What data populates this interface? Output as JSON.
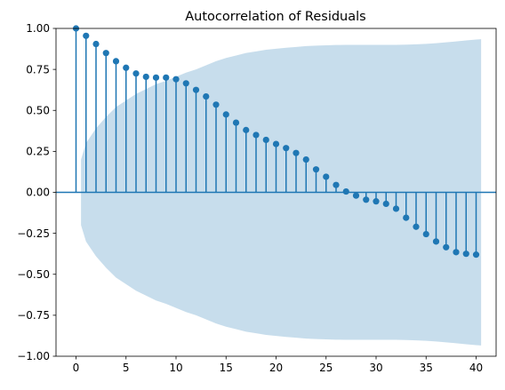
{
  "colors": {
    "stem": "#1f77b4",
    "marker": "#1f77b4",
    "band": "#1f77b4",
    "zero_line": "#1f77b4",
    "axis": "#000000",
    "background": "#ffffff"
  },
  "chart_data": {
    "type": "scatter",
    "subtype": "stem",
    "title": "Autocorrelation of Residuals",
    "xlabel": "",
    "ylabel": "",
    "xlim": [
      -2,
      42
    ],
    "ylim": [
      -1.0,
      1.0
    ],
    "grid": false,
    "legend": "none",
    "x_ticks": [
      0,
      5,
      10,
      15,
      20,
      25,
      30,
      35,
      40
    ],
    "x_tick_labels": [
      "0",
      "5",
      "10",
      "15",
      "20",
      "25",
      "30",
      "35",
      "40"
    ],
    "y_ticks": [
      -1.0,
      -0.75,
      -0.5,
      -0.25,
      0.0,
      0.25,
      0.5,
      0.75,
      1.0
    ],
    "y_tick_labels": [
      "−1.00",
      "−0.75",
      "−0.50",
      "−0.25",
      "0.00",
      "0.25",
      "0.50",
      "0.75",
      "1.00"
    ],
    "lags": [
      0,
      1,
      2,
      3,
      4,
      5,
      6,
      7,
      8,
      9,
      10,
      11,
      12,
      13,
      14,
      15,
      16,
      17,
      18,
      19,
      20,
      21,
      22,
      23,
      24,
      25,
      26,
      27,
      28,
      29,
      30,
      31,
      32,
      33,
      34,
      35,
      36,
      37,
      38,
      39,
      40
    ],
    "acf": [
      1.0,
      0.955,
      0.905,
      0.85,
      0.8,
      0.76,
      0.725,
      0.705,
      0.7,
      0.7,
      0.69,
      0.665,
      0.625,
      0.585,
      0.535,
      0.475,
      0.425,
      0.38,
      0.35,
      0.32,
      0.295,
      0.27,
      0.24,
      0.2,
      0.14,
      0.095,
      0.045,
      0.005,
      -0.02,
      -0.045,
      -0.055,
      -0.07,
      -0.1,
      -0.155,
      -0.21,
      -0.255,
      -0.3,
      -0.335,
      -0.365,
      -0.375,
      -0.38
    ],
    "confidence_band": {
      "lags": [
        0.5,
        1,
        2,
        3,
        4,
        5,
        6,
        7,
        8,
        9,
        10,
        11,
        12,
        13,
        14,
        15,
        16,
        17,
        18,
        19,
        20,
        21,
        22,
        23,
        24,
        25,
        26,
        27,
        28,
        29,
        30,
        31,
        32,
        33,
        34,
        35,
        36,
        37,
        38,
        39,
        40,
        40.5
      ],
      "upper": [
        0.2,
        0.3,
        0.39,
        0.46,
        0.52,
        0.56,
        0.6,
        0.63,
        0.66,
        0.68,
        0.705,
        0.73,
        0.75,
        0.775,
        0.8,
        0.82,
        0.835,
        0.85,
        0.86,
        0.87,
        0.876,
        0.882,
        0.887,
        0.892,
        0.895,
        0.897,
        0.899,
        0.9,
        0.9,
        0.9,
        0.9,
        0.9,
        0.9,
        0.901,
        0.903,
        0.906,
        0.91,
        0.915,
        0.921,
        0.927,
        0.932,
        0.934
      ]
    }
  }
}
